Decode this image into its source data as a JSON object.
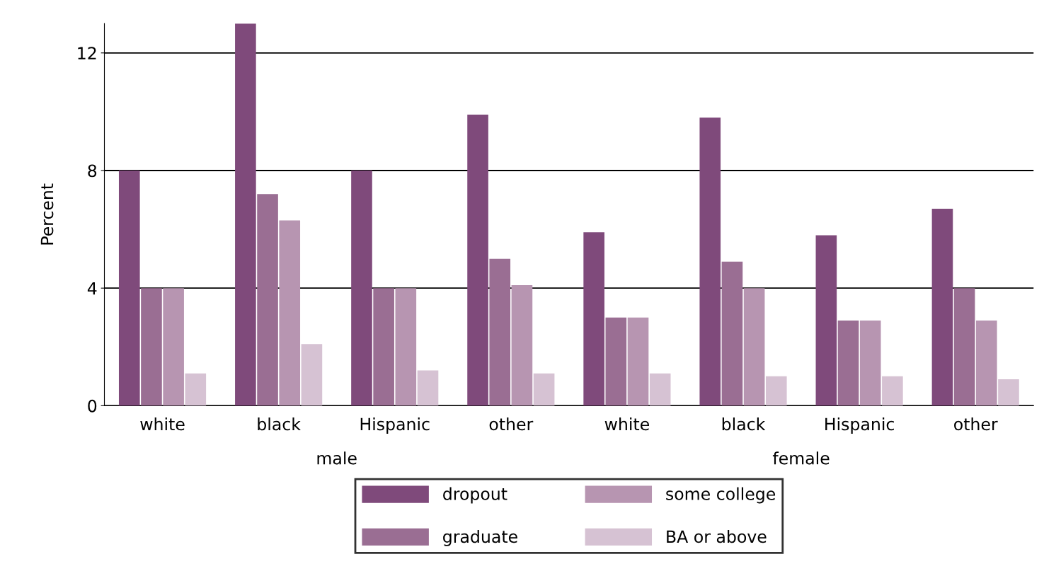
{
  "chart_data": {
    "type": "bar",
    "ylabel": "Percent",
    "categories": [
      "white",
      "black",
      "Hispanic",
      "other",
      "white",
      "black",
      "Hispanic",
      "other"
    ],
    "series": [
      {
        "name": "dropout",
        "color": "#7f4a7b",
        "values": [
          8.0,
          13.0,
          8.0,
          9.9,
          5.9,
          9.8,
          5.8,
          6.7
        ]
      },
      {
        "name": "graduate",
        "color": "#9a6e93",
        "values": [
          4.0,
          7.2,
          4.0,
          5.0,
          3.0,
          4.9,
          2.9,
          4.0
        ]
      },
      {
        "name": "some college",
        "color": "#b795b1",
        "values": [
          4.0,
          6.3,
          4.0,
          4.1,
          3.0,
          4.0,
          2.9,
          2.9
        ]
      },
      {
        "name": "BA or above",
        "color": "#d6c2d3",
        "values": [
          1.1,
          2.1,
          1.2,
          1.1,
          1.1,
          1.0,
          1.0,
          0.9
        ]
      }
    ],
    "annotations": [
      "male",
      "female"
    ],
    "ylim": [
      0,
      13
    ],
    "yticks": [
      0,
      4,
      8,
      12
    ],
    "grid": "y",
    "legend": "bottom"
  }
}
